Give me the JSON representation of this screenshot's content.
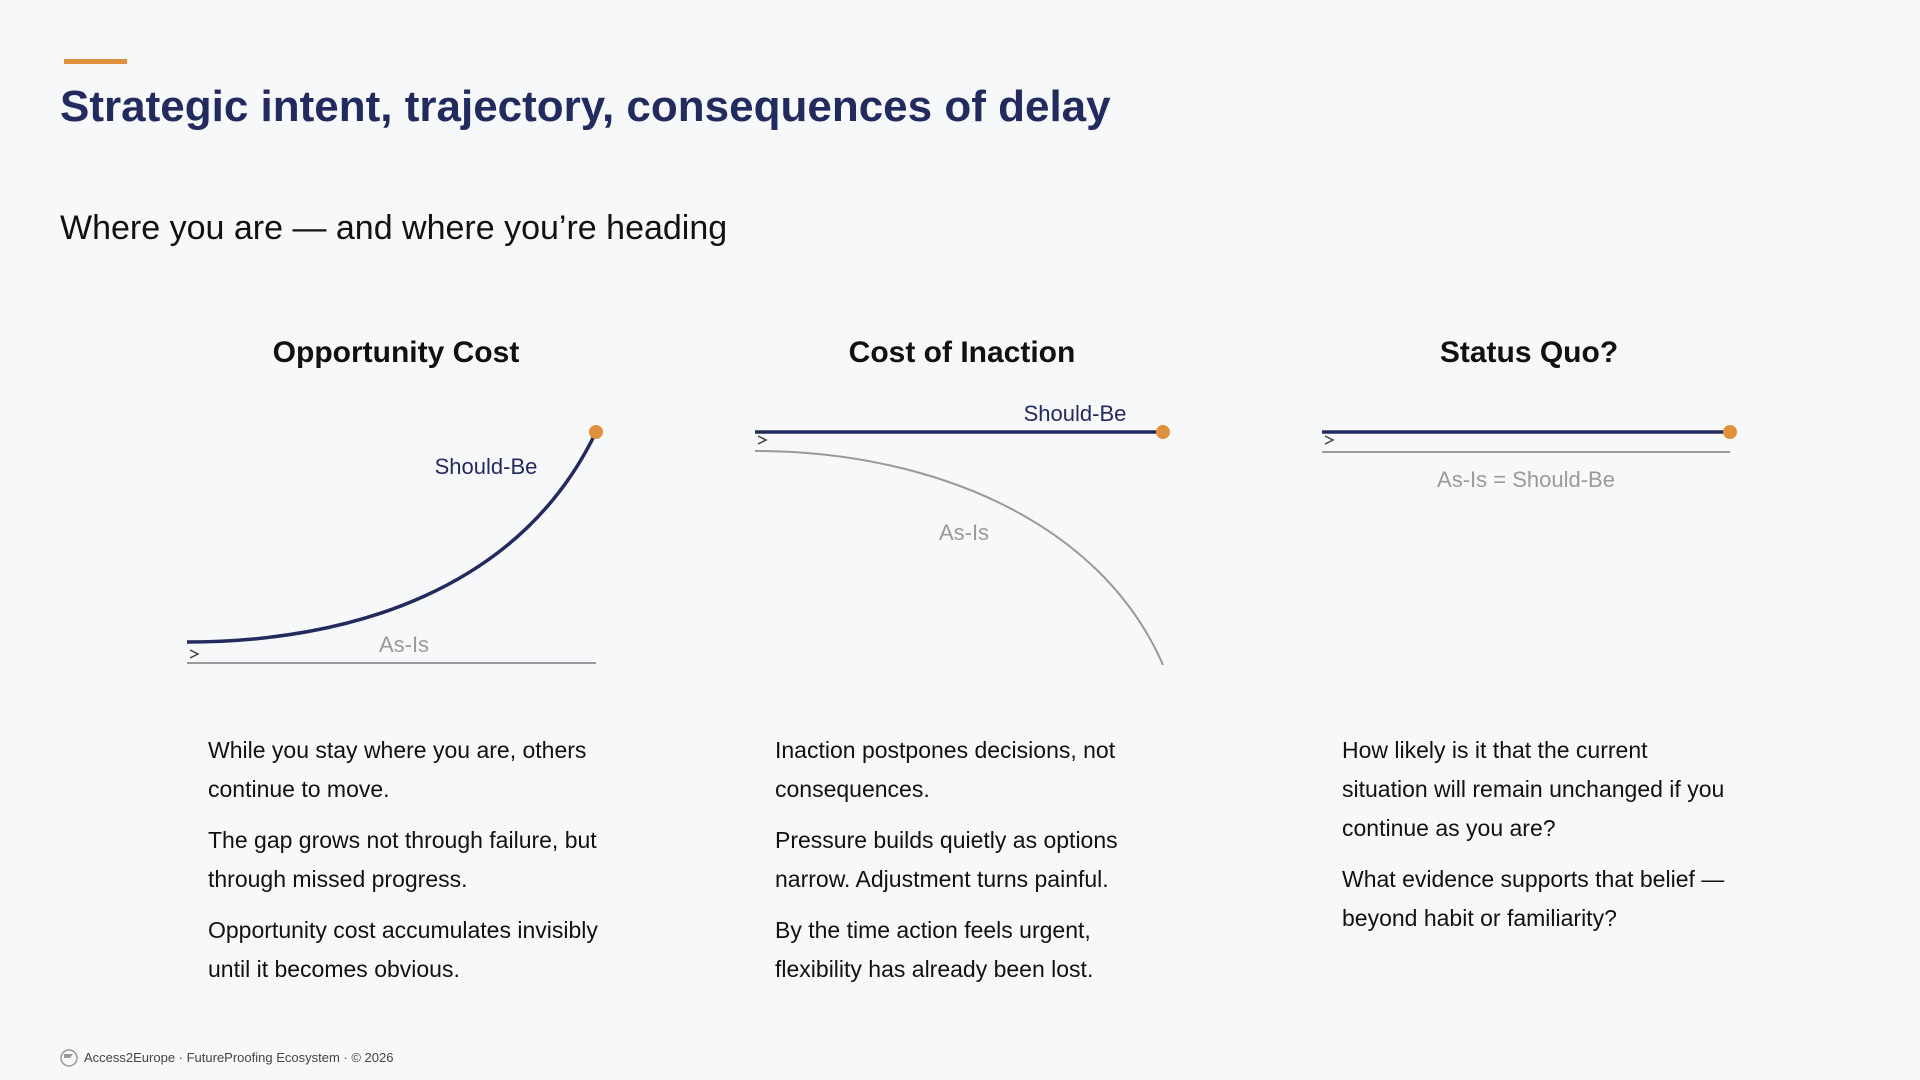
{
  "header": {
    "title": "Strategic intent, trajectory, consequences of delay",
    "subtitle": "Where you are — and where you’re heading"
  },
  "panels": [
    {
      "heading": "Opportunity Cost",
      "labels": [
        "Should-Be",
        "As-Is"
      ],
      "paragraphs": [
        "While you stay where you are, others continue to move.",
        "The gap grows not through failure, but through missed progress.",
        "Opportunity cost accumulates invisibly until it becomes obvious."
      ]
    },
    {
      "heading": "Cost of Inaction",
      "labels": [
        "Should-Be",
        "As-Is"
      ],
      "paragraphs": [
        "Inaction postpones decisions, not consequences.",
        "Pressure builds quietly as options narrow. Adjustment turns painful.",
        "By the time action feels urgent, flexibility has already been lost."
      ]
    },
    {
      "heading": "Status Quo?",
      "labels": [
        "As-Is = Should-Be"
      ],
      "paragraphs": [
        "How likely is it that the current situation will remain unchanged if you continue as you are?",
        "What evidence supports that belief — beyond habit or familiarity?"
      ]
    }
  ],
  "footer": {
    "text": "Access2Europe · FutureProofing Ecosystem · © 2026"
  }
}
